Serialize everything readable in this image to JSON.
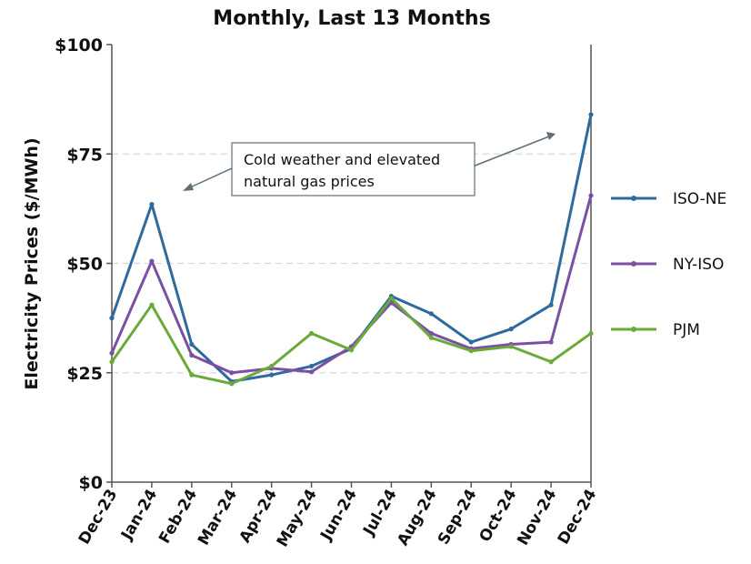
{
  "chart_data": {
    "type": "line",
    "title": "Monthly, Last 13 Months",
    "xlabel": "",
    "ylabel": "Electricity Prices ($/MWh)",
    "ylim": [
      0,
      100
    ],
    "yticks": [
      0,
      25,
      50,
      75,
      100
    ],
    "ytick_labels": [
      "$0",
      "$25",
      "$50",
      "$75",
      "$100"
    ],
    "grid": "horizontal dashed",
    "legend_position": "right",
    "categories": [
      "Dec-23",
      "Jan-24",
      "Feb-24",
      "Mar-24",
      "Apr-24",
      "May-24",
      "Jun-24",
      "Jul-24",
      "Aug-24",
      "Sep-24",
      "Oct-24",
      "Nov-24",
      "Dec-24"
    ],
    "series": [
      {
        "name": "ISO-NE",
        "color": "#2e6a9e",
        "values": [
          37.5,
          63.5,
          31.5,
          23,
          24.5,
          26.5,
          30.5,
          42.5,
          38.5,
          32,
          35,
          40.5,
          84
        ]
      },
      {
        "name": "NY-ISO",
        "color": "#7b4fa3",
        "values": [
          29.5,
          50.5,
          29,
          25,
          26,
          25.2,
          31,
          41,
          34,
          30.5,
          31.5,
          32,
          65.5
        ]
      },
      {
        "name": "PJM",
        "color": "#6aaa3a",
        "values": [
          27.5,
          40.5,
          24.5,
          22.5,
          26.5,
          34,
          30.2,
          42,
          33,
          30,
          31,
          27.5,
          34
        ]
      }
    ],
    "annotation": {
      "line1": "Cold weather and elevated",
      "line2": "natural gas prices",
      "arrow_targets": [
        "Jan-24",
        "Dec-24"
      ]
    }
  }
}
